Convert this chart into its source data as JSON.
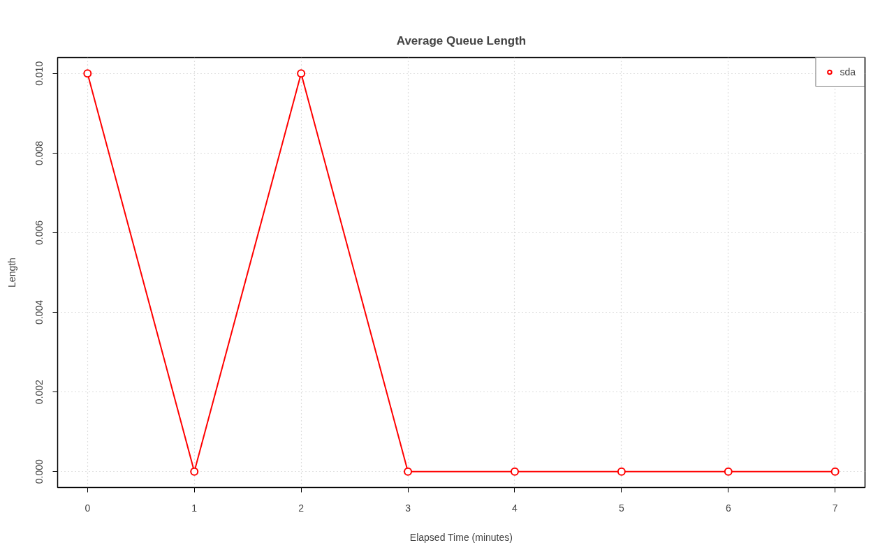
{
  "chart_data": {
    "type": "line",
    "title": "Average Queue Length",
    "xlabel": "Elapsed Time (minutes)",
    "ylabel": "Length",
    "x": [
      0,
      1,
      2,
      3,
      4,
      5,
      6,
      7
    ],
    "series": [
      {
        "name": "sda",
        "color": "#ff0000",
        "values": [
          0.01,
          0,
          0.01,
          0,
          0,
          0,
          0,
          0
        ]
      }
    ],
    "xlim": [
      -0.28,
      7.28
    ],
    "ylim": [
      -0.0004,
      0.0104
    ],
    "xticks": [
      0,
      1,
      2,
      3,
      4,
      5,
      6,
      7
    ],
    "yticks": [
      {
        "value": 0,
        "label": "0.000"
      },
      {
        "value": 0.002,
        "label": "0.002"
      },
      {
        "value": 0.004,
        "label": "0.004"
      },
      {
        "value": 0.006,
        "label": "0.006"
      },
      {
        "value": 0.008,
        "label": "0.008"
      },
      {
        "value": 0.01,
        "label": "0.010"
      }
    ],
    "grid": true,
    "legend": "top right",
    "marker": "circle",
    "line_style": "solid"
  }
}
